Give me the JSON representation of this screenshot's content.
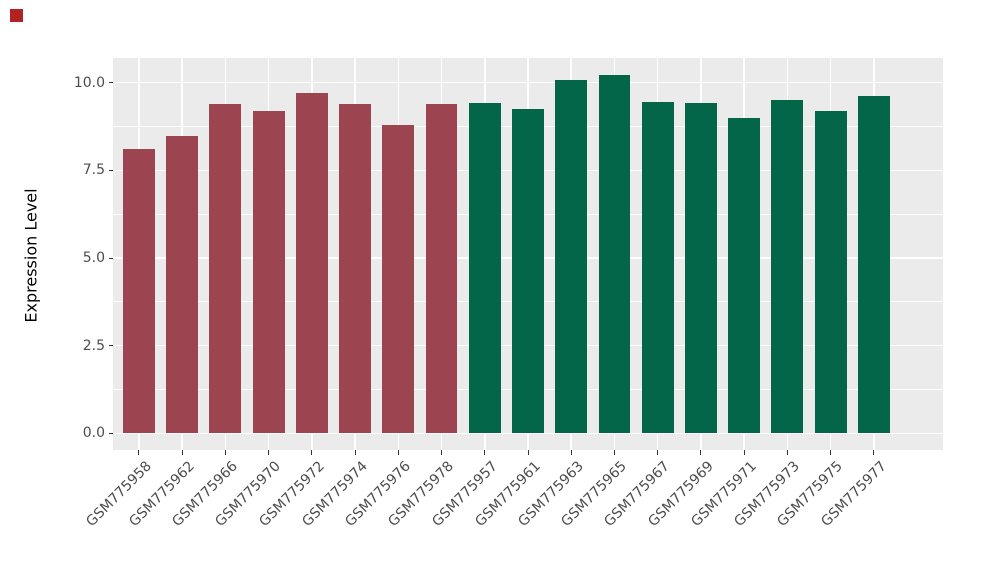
{
  "corner_marker": {
    "color": "#B22222"
  },
  "chart_data": {
    "type": "bar",
    "title": "",
    "xlabel": "",
    "ylabel": "Expression Level",
    "ylim": [
      -0.51,
      10.71
    ],
    "yticks": [
      0.0,
      2.5,
      5.0,
      7.5,
      10.0
    ],
    "ytick_labels": [
      "0.0",
      "2.5",
      "5.0",
      "7.5",
      "10.0"
    ],
    "yminor": [
      1.25,
      3.75,
      6.25,
      8.75
    ],
    "grid": "on",
    "legend": "none",
    "panel_background": "#EBEBEB",
    "gridline_color": "#FFFFFF",
    "axis_text_color": "#4D4D4D",
    "tick_mark_color": "#333333",
    "categories": [
      "GSM775958",
      "GSM775962",
      "GSM775966",
      "GSM775970",
      "GSM775972",
      "GSM775974",
      "GSM775976",
      "GSM775978",
      "GSM775957",
      "GSM775961",
      "GSM775963",
      "GSM775965",
      "GSM775967",
      "GSM775969",
      "GSM775971",
      "GSM775973",
      "GSM775975",
      "GSM775977"
    ],
    "values": [
      8.1,
      8.48,
      9.38,
      9.18,
      9.72,
      9.38,
      8.78,
      9.4,
      9.42,
      9.25,
      10.08,
      10.22,
      9.45,
      9.41,
      9.0,
      9.52,
      9.19,
      9.62
    ],
    "groups": [
      "A",
      "A",
      "A",
      "A",
      "A",
      "A",
      "A",
      "A",
      "B",
      "B",
      "B",
      "B",
      "B",
      "B",
      "B",
      "B",
      "B",
      "B"
    ],
    "group_colors": {
      "A": "#9C4450",
      "B": "#046648"
    }
  }
}
